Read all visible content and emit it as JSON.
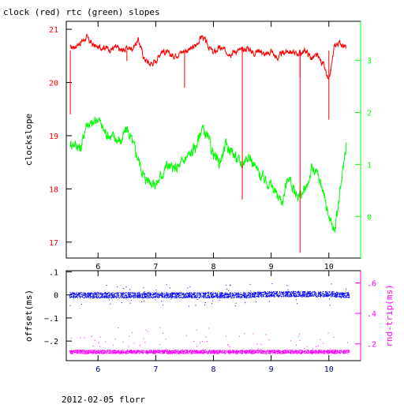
{
  "title": "clock (red) rtc (green) slopes",
  "footer": "2012-02-05 florr",
  "colors": {
    "red": "#ff0000",
    "green": "#00ff00",
    "blue": "#0000ff",
    "magenta": "#ff00ff",
    "axis": "#000000",
    "navy": "#000080"
  },
  "chart_data": [
    {
      "type": "line",
      "title": "clock (red) rtc (green) slopes",
      "ylabel": "clockslope",
      "xlim": [
        5.45,
        10.55
      ],
      "ylim": [
        16.7,
        21.15
      ],
      "x_ticks": [
        6,
        7,
        8,
        9,
        10
      ],
      "y_ticks": [
        17,
        18,
        19,
        20,
        21
      ],
      "y2lim": [
        -0.8,
        3.75
      ],
      "y2_ticks": [
        0,
        1,
        2,
        3
      ],
      "grid": false,
      "series": [
        {
          "axis": "left",
          "color": "#ff0000",
          "x": [
            5.52,
            5.6,
            5.7,
            5.8,
            5.9,
            6.0,
            6.1,
            6.2,
            6.3,
            6.4,
            6.5,
            6.6,
            6.7,
            6.8,
            6.9,
            7.0,
            7.1,
            7.2,
            7.3,
            7.4,
            7.5,
            7.6,
            7.7,
            7.8,
            7.9,
            8.0,
            8.1,
            8.2,
            8.3,
            8.4,
            8.5,
            8.6,
            8.7,
            8.8,
            8.9,
            9.0,
            9.1,
            9.2,
            9.3,
            9.4,
            9.5,
            9.6,
            9.7,
            9.8,
            9.9,
            10.0,
            10.1,
            10.2,
            10.3
          ],
          "y": [
            20.65,
            20.68,
            20.75,
            20.85,
            20.72,
            20.65,
            20.68,
            20.62,
            20.66,
            20.6,
            20.64,
            20.65,
            20.8,
            20.45,
            20.35,
            20.4,
            20.6,
            20.55,
            20.5,
            20.55,
            20.6,
            20.62,
            20.7,
            20.88,
            20.7,
            20.55,
            20.65,
            20.6,
            20.55,
            20.6,
            20.6,
            20.65,
            20.55,
            20.62,
            20.5,
            20.6,
            20.45,
            20.55,
            20.6,
            20.55,
            20.55,
            20.6,
            20.45,
            20.5,
            20.35,
            20.0,
            20.7,
            20.75,
            20.65
          ]
        },
        {
          "axis": "right",
          "color": "#00ff00",
          "x": [
            5.52,
            5.6,
            5.7,
            5.8,
            5.9,
            6.0,
            6.1,
            6.2,
            6.3,
            6.4,
            6.5,
            6.6,
            6.7,
            6.8,
            6.9,
            7.0,
            7.1,
            7.2,
            7.3,
            7.4,
            7.5,
            7.6,
            7.7,
            7.8,
            7.9,
            8.0,
            8.1,
            8.2,
            8.3,
            8.4,
            8.5,
            8.6,
            8.7,
            8.8,
            8.9,
            9.0,
            9.1,
            9.2,
            9.3,
            9.4,
            9.5,
            9.6,
            9.7,
            9.8,
            9.9,
            10.0,
            10.1,
            10.2,
            10.3
          ],
          "y": [
            1.4,
            1.4,
            1.3,
            1.8,
            1.75,
            1.9,
            1.65,
            1.55,
            1.5,
            1.45,
            1.7,
            1.4,
            1.1,
            0.75,
            0.7,
            0.6,
            0.8,
            1.0,
            0.9,
            0.95,
            1.1,
            1.2,
            1.35,
            1.7,
            1.5,
            1.2,
            1.0,
            1.35,
            1.3,
            1.1,
            1.0,
            1.2,
            1.0,
            0.8,
            0.7,
            0.6,
            0.4,
            0.3,
            0.8,
            0.45,
            0.4,
            0.5,
            0.9,
            0.8,
            0.5,
            0.0,
            -0.3,
            0.5,
            1.4
          ]
        }
      ]
    },
    {
      "type": "scatter",
      "ylabel": "offset(ms)",
      "y2label": "rnd-trip(ms)",
      "xlim": [
        5.45,
        10.55
      ],
      "ylim": [
        -0.285,
        0.105
      ],
      "x_ticks": [
        6,
        7,
        8,
        9,
        10
      ],
      "y_ticks": [
        0.1,
        0,
        -0.1,
        -0.2
      ],
      "y2lim": [
        0.09,
        0.68
      ],
      "y2_ticks": [
        0.2,
        0.4,
        0.6
      ],
      "grid": false,
      "series": [
        {
          "axis": "left",
          "color": "#0000ff",
          "x": [
            5.5,
            6.0,
            6.5,
            7.0,
            7.5,
            8.0,
            8.5,
            9.0,
            9.5,
            10.0,
            10.35
          ],
          "y": [
            0.0,
            0.0,
            0.0,
            0.0,
            0.0,
            0.0,
            0.0,
            0.005,
            0.005,
            0.005,
            0.0
          ]
        },
        {
          "axis": "right",
          "color": "#ff00ff",
          "x": [
            5.5,
            6.0,
            6.5,
            7.0,
            7.5,
            8.0,
            8.5,
            9.0,
            9.5,
            10.0,
            10.35
          ],
          "y": [
            0.15,
            0.15,
            0.15,
            0.15,
            0.15,
            0.15,
            0.15,
            0.15,
            0.15,
            0.15,
            0.15
          ]
        }
      ]
    }
  ]
}
